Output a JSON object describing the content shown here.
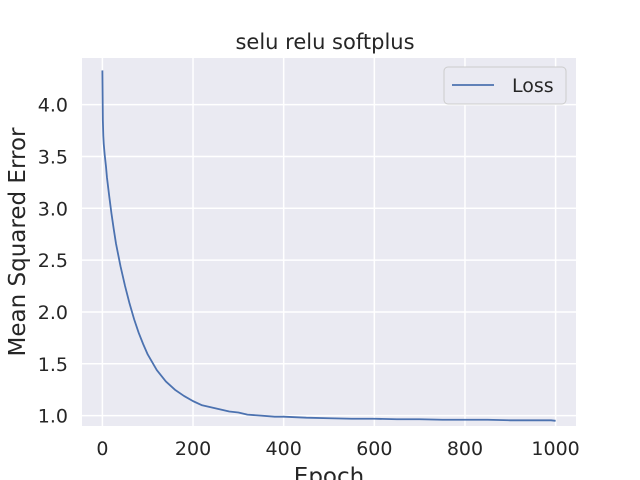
{
  "chart_data": {
    "type": "line",
    "title": "selu relu softplus",
    "xlabel": "Epoch",
    "ylabel": "Mean Squared Error",
    "xlim": [
      -45,
      1045
    ],
    "ylim": [
      0.9,
      4.45
    ],
    "xticks": [
      0,
      200,
      400,
      600,
      800,
      1000
    ],
    "yticks": [
      1.0,
      1.5,
      2.0,
      2.5,
      3.0,
      3.5,
      4.0
    ],
    "xtick_labels": [
      "0",
      "200",
      "400",
      "600",
      "800",
      "1000"
    ],
    "ytick_labels": [
      "1.0",
      "1.5",
      "2.0",
      "2.5",
      "3.0",
      "3.5",
      "4.0"
    ],
    "grid": true,
    "legend": {
      "position": "top-right",
      "entries": [
        "Loss"
      ]
    },
    "series": [
      {
        "name": "Loss",
        "color": "#4c72b0",
        "x": [
          0,
          1,
          2,
          3,
          5,
          8,
          10,
          15,
          20,
          25,
          30,
          40,
          50,
          60,
          70,
          80,
          90,
          100,
          120,
          140,
          160,
          180,
          200,
          220,
          250,
          280,
          300,
          320,
          350,
          380,
          400,
          450,
          500,
          550,
          600,
          650,
          700,
          750,
          800,
          850,
          900,
          950,
          990,
          1000
        ],
        "y": [
          4.33,
          3.85,
          3.7,
          3.62,
          3.52,
          3.4,
          3.3,
          3.12,
          2.95,
          2.8,
          2.66,
          2.44,
          2.25,
          2.08,
          1.93,
          1.8,
          1.69,
          1.59,
          1.44,
          1.33,
          1.25,
          1.19,
          1.14,
          1.1,
          1.07,
          1.04,
          1.03,
          1.01,
          1.0,
          0.99,
          0.99,
          0.98,
          0.975,
          0.97,
          0.97,
          0.965,
          0.965,
          0.96,
          0.96,
          0.96,
          0.955,
          0.955,
          0.955,
          0.95
        ]
      }
    ]
  }
}
